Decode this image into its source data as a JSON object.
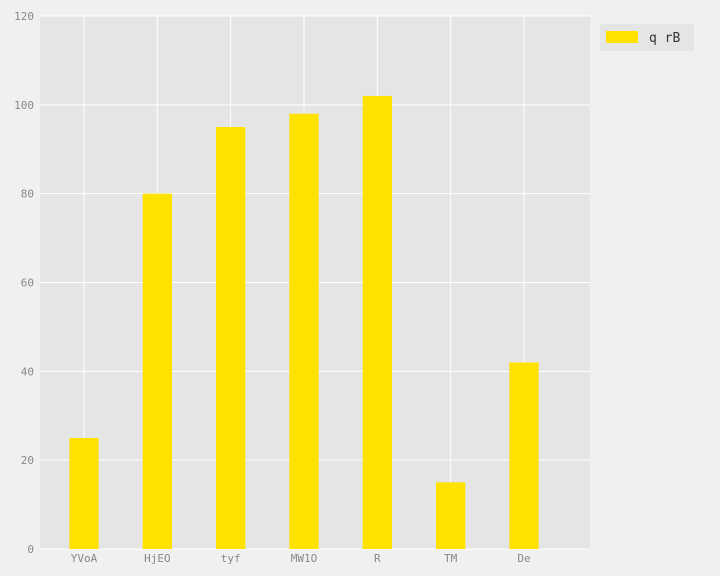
{
  "chart_data": {
    "type": "bar",
    "categories": [
      "YVoA",
      "HjEO",
      "tyf",
      "MW1O",
      "R",
      "TM",
      "De"
    ],
    "series": [
      {
        "name": "q rB",
        "values": [
          25,
          80,
          95,
          98,
          102,
          15,
          42
        ]
      }
    ],
    "ylim": [
      0,
      120
    ],
    "yticks": [
      0,
      20,
      40,
      60,
      80,
      100,
      120
    ],
    "grid": true,
    "legend_position": "outside-top-right",
    "colors": {
      "bar": "#ffe200",
      "plot_background": "#e5e5e5",
      "figure_background": "#f0f0f0",
      "grid": "#ffffff"
    }
  }
}
